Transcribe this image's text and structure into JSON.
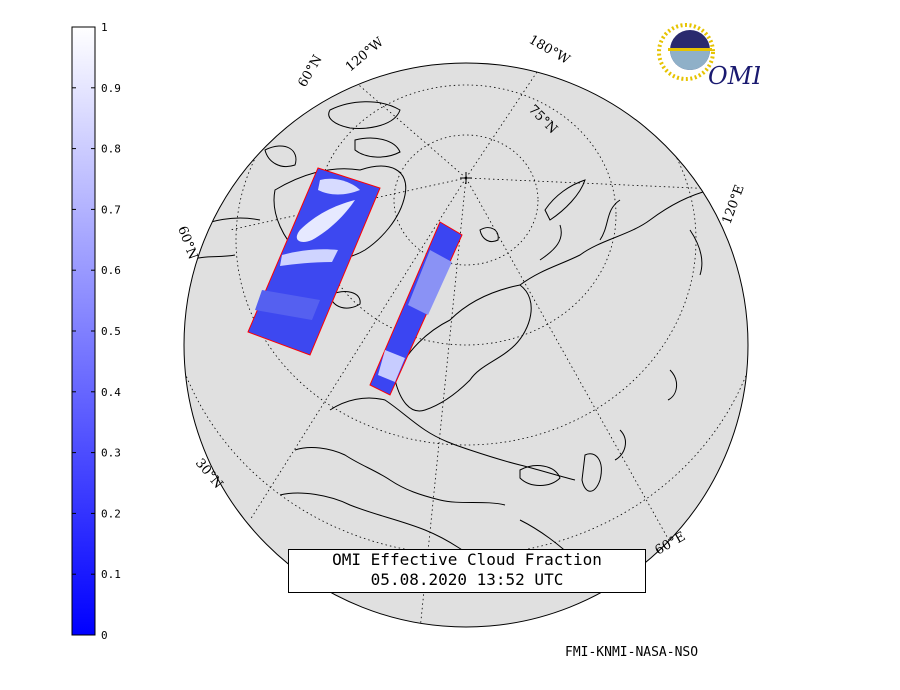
{
  "title": {
    "line1": "OMI Effective Cloud Fraction",
    "line2": "05.08.2020 13:52 UTC"
  },
  "credit": "FMI-KNMI-NASA-NSO",
  "logo_text": "OMI",
  "colorbar": {
    "labels": [
      "1",
      "0.9",
      "0.8",
      "0.7",
      "0.6",
      "0.5",
      "0.4",
      "0.3",
      "0.2",
      "0.1",
      "0"
    ],
    "min": 0,
    "max": 1,
    "color_low": "#0000ff",
    "color_high": "#ffffff"
  },
  "grid_labels": {
    "lon_120w": "120°W",
    "lon_180": "180°W",
    "lat_60n_top": "60°N",
    "lat_75n": "75°N",
    "lon_120e": "120°E",
    "lat_60n_left": "60°N",
    "lat_30n": "30°N",
    "lon_60e": "60°E"
  },
  "colors": {
    "globe_fill": "#e0e0e0",
    "coast": "#000000",
    "swath_edge": "#ff0000"
  }
}
